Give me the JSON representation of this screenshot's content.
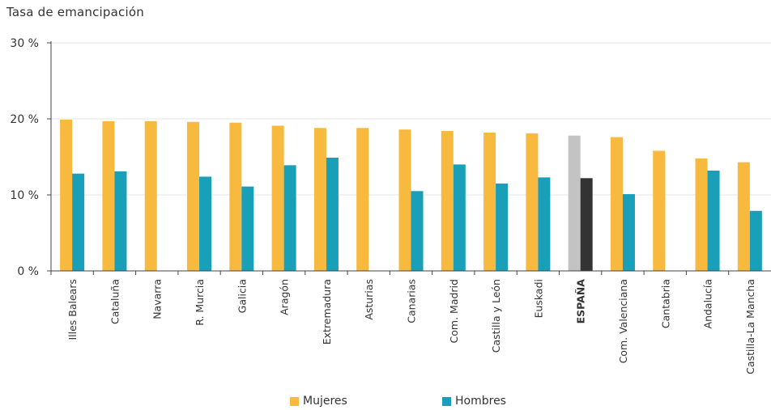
{
  "chart_data": {
    "type": "bar",
    "title": "Tasa de emancipación",
    "y_ticks": [
      "0 %",
      "10 %",
      "20 %",
      "30 %"
    ],
    "ylim": [
      0,
      30
    ],
    "grid": true,
    "legend_position": "bottom",
    "categories": [
      "Illes Balears",
      "Cataluña",
      "Navarra",
      "R. Murcia",
      "Galicia",
      "Aragón",
      "Extremadura",
      "Asturias",
      "Canarias",
      "Com. Madrid",
      "Castilla y León",
      "Euskadi",
      "ESPAÑA",
      "Com. Valenciana",
      "Cantabria",
      "Andalucía",
      "Castilla-La Mancha"
    ],
    "highlight_category": "ESPAÑA",
    "series": [
      {
        "name": "Mujeres",
        "color": "#F7B93E",
        "highlight_color": "#C3C3C3",
        "values": [
          19.9,
          19.7,
          19.7,
          19.6,
          19.5,
          19.1,
          18.8,
          18.8,
          18.6,
          18.4,
          18.2,
          18.1,
          17.8,
          17.6,
          15.8,
          14.8,
          14.3
        ]
      },
      {
        "name": "Hombres",
        "color": "#1A9FB8",
        "highlight_color": "#333333",
        "values": [
          12.8,
          13.1,
          null,
          12.4,
          11.1,
          13.9,
          14.9,
          null,
          10.5,
          14.0,
          11.5,
          12.3,
          12.2,
          10.1,
          null,
          13.2,
          7.9
        ]
      }
    ]
  }
}
